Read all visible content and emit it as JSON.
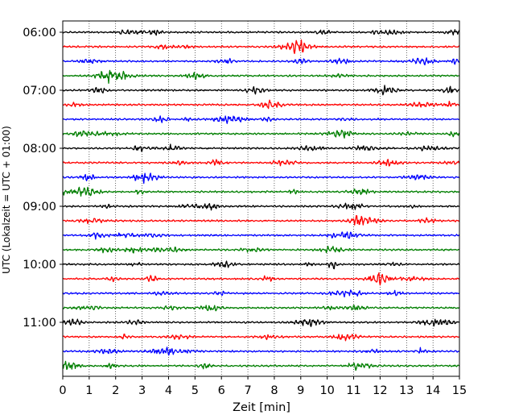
{
  "chart_data": {
    "type": "line",
    "title": "",
    "xlabel": "Zeit  [min]",
    "ylabel": "UTC (Lokalzeit = UTC + 01:00)",
    "xlim": [
      0,
      15
    ],
    "x_ticks": [
      0,
      1,
      2,
      3,
      4,
      5,
      6,
      7,
      8,
      9,
      10,
      11,
      12,
      13,
      14,
      15
    ],
    "x_tick_labels": [
      "0",
      "1",
      "2",
      "3",
      "4",
      "5",
      "6",
      "7",
      "8",
      "9",
      "10",
      "11",
      "12",
      "13",
      "14",
      "15"
    ],
    "y_tick_labels": [
      "06:00",
      "07:00",
      "08:00",
      "09:00",
      "10:00",
      "11:00"
    ],
    "grid": "vertical dotted",
    "legend": "none",
    "row_minutes": 15,
    "start_time": "06:00",
    "trace_colors": [
      "#000000",
      "#ff0000",
      "#0000ff",
      "#007f00"
    ],
    "traces": [
      {
        "start": "06:00",
        "color": "#000000"
      },
      {
        "start": "06:15",
        "color": "#ff0000"
      },
      {
        "start": "06:30",
        "color": "#0000ff"
      },
      {
        "start": "06:45",
        "color": "#007f00"
      },
      {
        "start": "07:00",
        "color": "#000000"
      },
      {
        "start": "07:15",
        "color": "#ff0000"
      },
      {
        "start": "07:30",
        "color": "#0000ff"
      },
      {
        "start": "07:45",
        "color": "#007f00"
      },
      {
        "start": "08:00",
        "color": "#000000"
      },
      {
        "start": "08:15",
        "color": "#ff0000"
      },
      {
        "start": "08:30",
        "color": "#0000ff"
      },
      {
        "start": "08:45",
        "color": "#007f00"
      },
      {
        "start": "09:00",
        "color": "#000000"
      },
      {
        "start": "09:15",
        "color": "#ff0000"
      },
      {
        "start": "09:30",
        "color": "#0000ff"
      },
      {
        "start": "09:45",
        "color": "#007f00"
      },
      {
        "start": "10:00",
        "color": "#000000"
      },
      {
        "start": "10:15",
        "color": "#ff0000"
      },
      {
        "start": "10:30",
        "color": "#0000ff"
      },
      {
        "start": "10:45",
        "color": "#007f00"
      },
      {
        "start": "11:00",
        "color": "#000000"
      },
      {
        "start": "11:15",
        "color": "#ff0000"
      },
      {
        "start": "11:30",
        "color": "#0000ff"
      },
      {
        "start": "11:45",
        "color": "#007f00"
      }
    ]
  }
}
